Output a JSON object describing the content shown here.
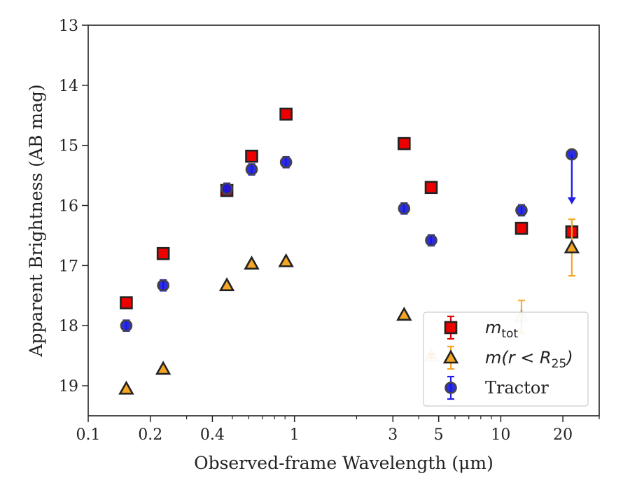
{
  "chart_data": {
    "type": "scatter",
    "xlabel": "Observed-frame Wavelength (μm)",
    "ylabel": "Apparent Brightness (AB mag)",
    "xscale": "log",
    "xlim": [
      0.1,
      30
    ],
    "ylim": [
      19.5,
      13
    ],
    "y_inverted": true,
    "x_ticks": [
      {
        "value": 0.1,
        "label": "0.1"
      },
      {
        "value": 0.2,
        "label": "0.2"
      },
      {
        "value": 0.4,
        "label": "0.4"
      },
      {
        "value": 1,
        "label": "1"
      },
      {
        "value": 3,
        "label": "3"
      },
      {
        "value": 5,
        "label": "5"
      },
      {
        "value": 10,
        "label": "10"
      },
      {
        "value": 20,
        "label": "20"
      }
    ],
    "x_minor_ticks": [
      0.3,
      0.5,
      0.6,
      0.7,
      0.8,
      0.9,
      2,
      4,
      6,
      7,
      8,
      9,
      30
    ],
    "y_ticks": [
      13,
      14,
      15,
      16,
      17,
      18,
      19
    ],
    "y_tick_labels": [
      "13",
      "14",
      "15",
      "16",
      "17",
      "18",
      "19"
    ],
    "legend_position": "lower-right",
    "grid": false,
    "series": [
      {
        "name_main": "m",
        "name_sub": "tot",
        "marker": "square",
        "face_color": "#ee0000",
        "edge_color": "#222222",
        "errorbar_color": "#dd0000",
        "points": [
          {
            "x": 0.153,
            "y": 17.62,
            "err": 0.07
          },
          {
            "x": 0.231,
            "y": 16.8,
            "err": 0.07
          },
          {
            "x": 0.47,
            "y": 15.75,
            "err": 0.08
          },
          {
            "x": 0.62,
            "y": 15.18,
            "err": 0.06
          },
          {
            "x": 0.91,
            "y": 14.48,
            "err": 0.07
          },
          {
            "x": 3.4,
            "y": 14.97,
            "err": 0.07
          },
          {
            "x": 4.6,
            "y": 15.7,
            "err": 0.07
          },
          {
            "x": 12.6,
            "y": 16.38,
            "err": 0.08
          },
          {
            "x": 22.1,
            "y": 16.44,
            "err": 0.07
          }
        ]
      },
      {
        "name_main": "m",
        "name_paren": "(r < R",
        "name_sub": "25",
        "name_close": ")",
        "marker": "triangle",
        "face_color": "#f5a623",
        "edge_color": "#222222",
        "errorbar_color": "#f5a623",
        "points": [
          {
            "x": 0.153,
            "y": 19.05,
            "err": 0.03
          },
          {
            "x": 0.231,
            "y": 18.72,
            "err": 0.03
          },
          {
            "x": 0.47,
            "y": 17.33,
            "err": 0.03
          },
          {
            "x": 0.62,
            "y": 16.97,
            "err": 0.03
          },
          {
            "x": 0.91,
            "y": 16.93,
            "err": 0.03
          },
          {
            "x": 3.4,
            "y": 17.82,
            "err": 0.03
          },
          {
            "x": 4.6,
            "y": 18.5,
            "err": 0.03,
            "faded": true
          },
          {
            "x": 12.6,
            "y": 17.85,
            "err": 0.27,
            "faded": true
          },
          {
            "x": 22.1,
            "y": 16.7,
            "err": 0.47
          }
        ]
      },
      {
        "name": "Tractor",
        "marker": "circle",
        "face_color": "#1515e0",
        "edge_color": "#444444",
        "errorbar_color": "#2020e8",
        "points": [
          {
            "x": 0.153,
            "y": 18.0,
            "err": 0.09
          },
          {
            "x": 0.231,
            "y": 17.33,
            "err": 0.09
          },
          {
            "x": 0.47,
            "y": 15.72,
            "err": 0.09
          },
          {
            "x": 0.62,
            "y": 15.4,
            "err": 0.09
          },
          {
            "x": 0.91,
            "y": 15.28,
            "err": 0.09
          },
          {
            "x": 3.4,
            "y": 16.05,
            "err": 0.09
          },
          {
            "x": 4.6,
            "y": 16.58,
            "err": 0.09
          },
          {
            "x": 12.6,
            "y": 16.08,
            "err": 0.09
          },
          {
            "x": 22.1,
            "y": 15.15,
            "upper_limit_to": 15.98
          }
        ]
      }
    ]
  }
}
